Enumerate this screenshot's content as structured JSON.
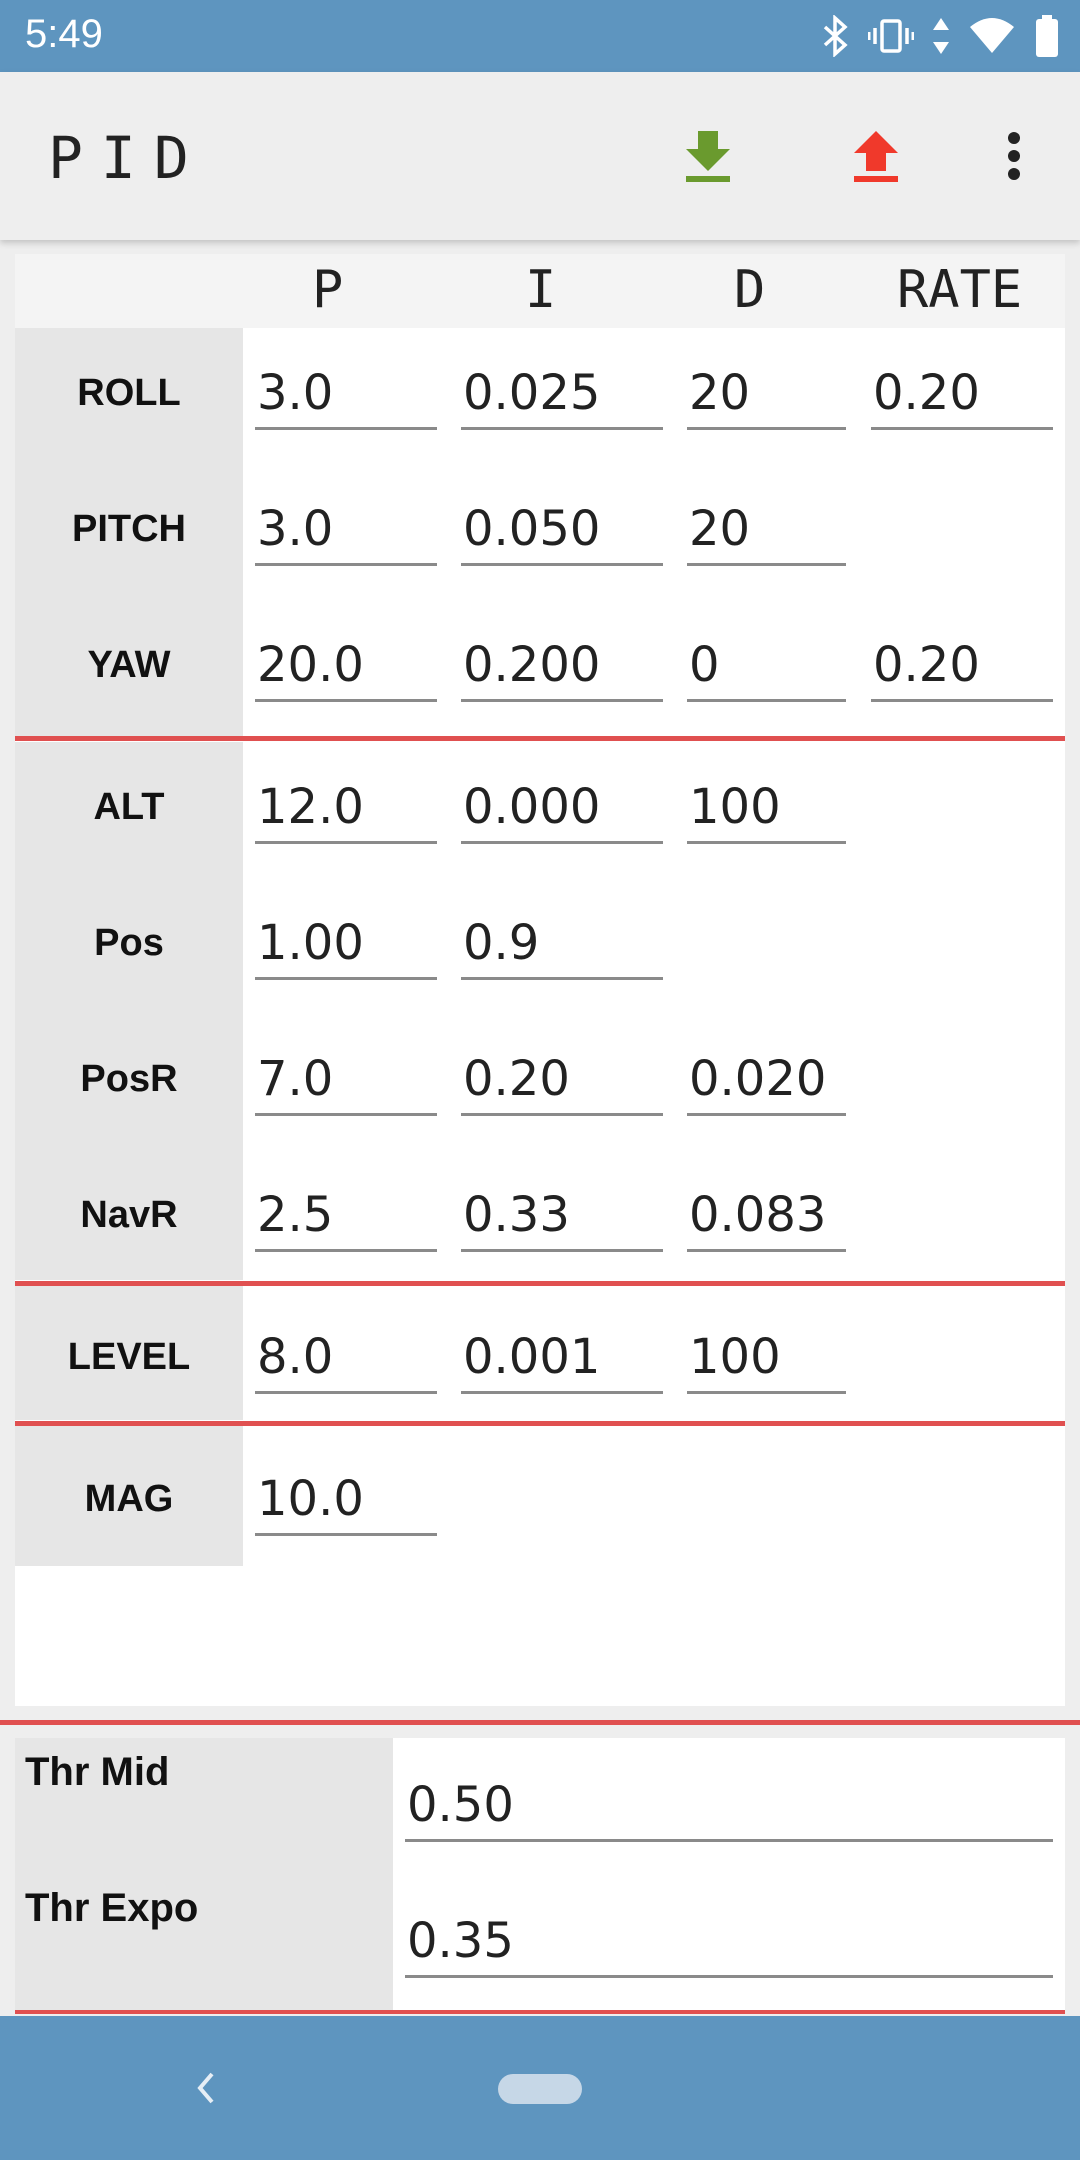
{
  "status_bar": {
    "time": "5:49"
  },
  "app_bar": {
    "title": "PID",
    "download_icon": "download-icon",
    "upload_icon": "upload-icon",
    "menu_icon": "more-vert-icon"
  },
  "colors": {
    "status": "#5e95bf",
    "divider": "#e05050",
    "download": "#6a9a2e",
    "upload": "#f0392b"
  },
  "table": {
    "headers": [
      "P",
      "I",
      "D",
      "RATE"
    ],
    "rows": [
      {
        "label": "ROLL",
        "p": "3.0",
        "i": "0.025",
        "d": "20",
        "rate": "0.20"
      },
      {
        "label": "PITCH",
        "p": "3.0",
        "i": "0.050",
        "d": "20"
      },
      {
        "label": "YAW",
        "p": "20.0",
        "i": "0.200",
        "d": "0",
        "rate": "0.20"
      },
      {
        "label": "ALT",
        "p": "12.0",
        "i": "0.000",
        "d": "100"
      },
      {
        "label": "Pos",
        "p": "1.00",
        "i": "0.9"
      },
      {
        "label": "PosR",
        "p": "7.0",
        "i": "0.20",
        "d": "0.020"
      },
      {
        "label": "NavR",
        "p": "2.5",
        "i": "0.33",
        "d": "0.083"
      },
      {
        "label": "LEVEL",
        "p": "8.0",
        "i": "0.001",
        "d": "100"
      },
      {
        "label": "MAG",
        "p": "10.0"
      }
    ]
  },
  "throttle": {
    "mid_label": "Thr Mid",
    "mid_value": "0.50",
    "expo_label": "Thr Expo",
    "expo_value": "0.35"
  }
}
